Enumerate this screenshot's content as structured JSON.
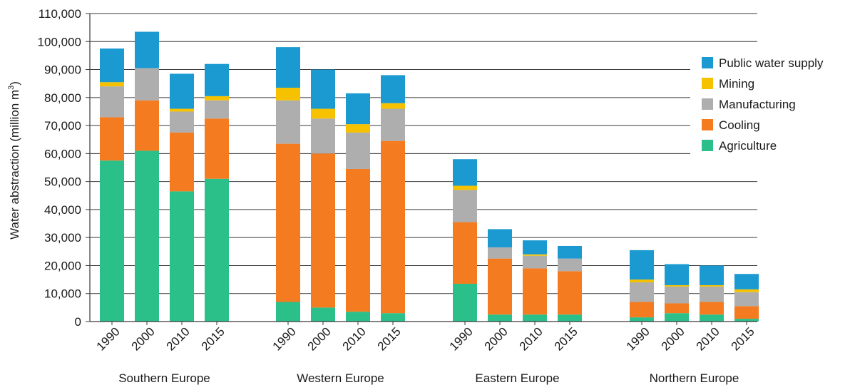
{
  "chart_data": {
    "type": "bar",
    "stacked": true,
    "ylabel": "Water abstraction (million m",
    "ylabel_superscript": "3",
    "ylabel_suffix": ")",
    "ylim": [
      0,
      110000
    ],
    "yticks": [
      0,
      10000,
      20000,
      30000,
      40000,
      50000,
      60000,
      70000,
      80000,
      90000,
      100000,
      110000
    ],
    "ytick_labels": [
      "0",
      "10,000",
      "20,000",
      "30,000",
      "40,000",
      "50,000",
      "60,000",
      "70,000",
      "80,000",
      "90,000",
      "100,000",
      "110,000"
    ],
    "grid": true,
    "legend_position": "top-right",
    "groups": [
      {
        "label": "Southern Europe",
        "years": [
          "1990",
          "2000",
          "2010",
          "2015"
        ]
      },
      {
        "label": "Western Europe",
        "years": [
          "1990",
          "2000",
          "2010",
          "2015"
        ]
      },
      {
        "label": "Eastern Europe",
        "years": [
          "1990",
          "2000",
          "2010",
          "2015"
        ]
      },
      {
        "label": "Northern Europe",
        "years": [
          "1990",
          "2000",
          "2010",
          "2015"
        ]
      }
    ],
    "series": [
      {
        "name": "Agriculture",
        "color": "#2bbf8a",
        "values": [
          57500,
          61000,
          46500,
          51000,
          7000,
          5000,
          3500,
          3000,
          13500,
          2500,
          2500,
          2500,
          1500,
          3000,
          2500,
          1000
        ]
      },
      {
        "name": "Cooling",
        "color": "#f47b1f",
        "values": [
          15500,
          18000,
          21000,
          21500,
          56500,
          55000,
          51000,
          61500,
          22000,
          20000,
          16500,
          15500,
          5500,
          3500,
          4500,
          4500
        ]
      },
      {
        "name": "Manufacturing",
        "color": "#aeaeae",
        "values": [
          11000,
          11500,
          7500,
          6500,
          15500,
          12500,
          13000,
          11500,
          11500,
          4000,
          4500,
          4500,
          7000,
          6000,
          5500,
          5000
        ]
      },
      {
        "name": "Mining",
        "color": "#f6c200",
        "values": [
          1500,
          0,
          1000,
          1500,
          4500,
          3500,
          3000,
          2000,
          1500,
          0,
          500,
          0,
          1000,
          500,
          500,
          1000
        ]
      },
      {
        "name": "Public water supply",
        "color": "#1a9ad1",
        "values": [
          12000,
          13000,
          12500,
          11500,
          14500,
          14000,
          11000,
          10000,
          9500,
          6500,
          5000,
          4500,
          10500,
          7500,
          7000,
          5500
        ]
      }
    ],
    "legend_order": [
      "Public water supply",
      "Mining",
      "Manufacturing",
      "Cooling",
      "Agriculture"
    ]
  }
}
